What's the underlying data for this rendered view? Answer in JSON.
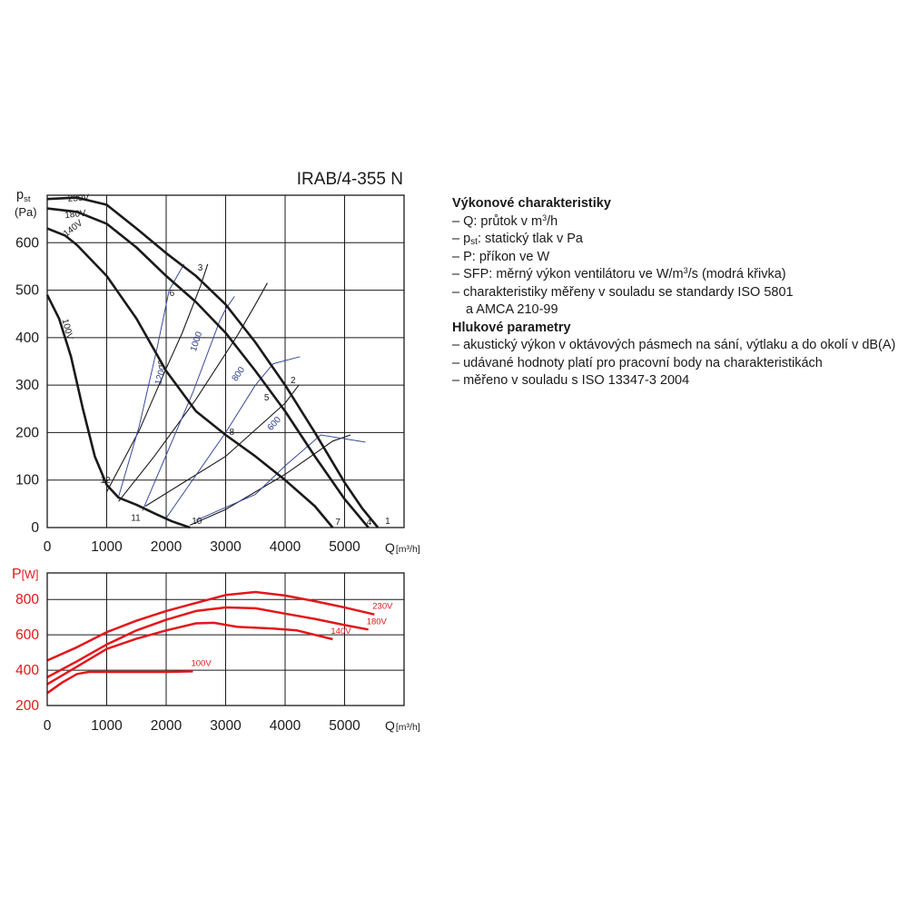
{
  "model_title": "IRAB/4-355 N",
  "legend": {
    "performance_heading": "Výkonové charakteristiky",
    "performance_items": [
      [
        {
          "t": "– Q: průtok v m"
        },
        {
          "t": "3",
          "sup": true
        },
        {
          "t": "/h"
        }
      ],
      [
        {
          "t": "– p"
        },
        {
          "t": "st",
          "sub": true
        },
        {
          "t": ": statický tlak v Pa"
        }
      ],
      [
        {
          "t": "– P: příkon ve W"
        }
      ],
      [
        {
          "t": "– SFP: měrný výkon ventilátoru ve W/m"
        },
        {
          "t": "3",
          "sup": true
        },
        {
          "t": "/s (modrá křivka)"
        }
      ],
      [
        {
          "t": "– charakteristiky měřeny v souladu se standardy ISO 5801"
        }
      ],
      [
        {
          "t": "a AMCA 210-99",
          "cont": true
        }
      ]
    ],
    "noise_heading": "Hlukové parametry",
    "noise_items": [
      [
        {
          "t": "– akustický výkon v oktávových pásmech na sání, výtlaku a do okolí v dB(A)"
        }
      ],
      [
        {
          "t": "– udávané hodnoty platí pro pracovní body na charakteristikách"
        }
      ],
      [
        {
          "t": "– měřeno v souladu s ISO 13347-3 2004"
        }
      ]
    ]
  },
  "chart_data": [
    {
      "type": "line",
      "title": "IRAB/4-355 N",
      "ylabel": "p",
      "ylabel_sub": "st",
      "ylabel_unit": "(Pa)",
      "xlabel": "Q",
      "xlabel_unit": "[m³/h]",
      "xlim": [
        0,
        6000
      ],
      "ylim": [
        0,
        700
      ],
      "xticks": [
        0,
        1000,
        2000,
        3000,
        4000,
        5000
      ],
      "yticks": [
        0,
        100,
        200,
        300,
        400,
        500,
        600
      ],
      "grid": true,
      "series": [
        {
          "name": "230V",
          "color": "#1a1a1a",
          "points": [
            [
              0,
              692
            ],
            [
              500,
              695
            ],
            [
              1000,
              680
            ],
            [
              1500,
              630
            ],
            [
              2000,
              578
            ],
            [
              2500,
              530
            ],
            [
              3000,
              470
            ],
            [
              3500,
              390
            ],
            [
              4000,
              300
            ],
            [
              4500,
              200
            ],
            [
              5000,
              95
            ],
            [
              5300,
              40
            ],
            [
              5560,
              0
            ]
          ]
        },
        {
          "name": "180V",
          "color": "#1a1a1a",
          "points": [
            [
              0,
              672
            ],
            [
              500,
              665
            ],
            [
              1000,
              640
            ],
            [
              1500,
              590
            ],
            [
              2000,
              530
            ],
            [
              2500,
              475
            ],
            [
              3000,
              410
            ],
            [
              3500,
              330
            ],
            [
              4000,
              245
            ],
            [
              4500,
              150
            ],
            [
              5000,
              60
            ],
            [
              5400,
              0
            ]
          ]
        },
        {
          "name": "140V",
          "color": "#1a1a1a",
          "points": [
            [
              0,
              630
            ],
            [
              300,
              615
            ],
            [
              500,
              595
            ],
            [
              1000,
              530
            ],
            [
              1500,
              440
            ],
            [
              2000,
              330
            ],
            [
              2500,
              245
            ],
            [
              3000,
              195
            ],
            [
              3500,
              150
            ],
            [
              4000,
              100
            ],
            [
              4500,
              45
            ],
            [
              4800,
              0
            ]
          ]
        },
        {
          "name": "100V",
          "color": "#1a1a1a",
          "points": [
            [
              0,
              490
            ],
            [
              200,
              440
            ],
            [
              400,
              360
            ],
            [
              600,
              250
            ],
            [
              800,
              150
            ],
            [
              1000,
              90
            ],
            [
              1200,
              63
            ],
            [
              1500,
              48
            ],
            [
              1800,
              30
            ],
            [
              2100,
              13
            ],
            [
              2400,
              0
            ]
          ]
        }
      ],
      "system_curves": [
        {
          "points": [
            [
              1000,
              75
            ],
            [
              1550,
              205
            ],
            [
              2000,
              335
            ],
            [
              2270,
              410
            ],
            [
              2580,
              510
            ],
            [
              2700,
              555
            ]
          ]
        },
        {
          "points": [
            [
              1200,
              55
            ],
            [
              1800,
              150
            ],
            [
              2500,
              270
            ],
            [
              3200,
              405
            ],
            [
              3500,
              470
            ],
            [
              3700,
              515
            ]
          ]
        },
        {
          "points": [
            [
              1650,
              45
            ],
            [
              3000,
              150
            ],
            [
              4000,
              262
            ],
            [
              4230,
              300
            ]
          ]
        },
        {
          "points": [
            [
              2400,
              5
            ],
            [
              3000,
              38
            ],
            [
              4000,
              112
            ],
            [
              4800,
              182
            ],
            [
              5100,
              195
            ]
          ]
        }
      ],
      "sfp_curves": [
        {
          "label": "1200",
          "points": [
            [
              1200,
              65
            ],
            [
              1550,
              215
            ],
            [
              1850,
              380
            ],
            [
              2050,
              500
            ],
            [
              2300,
              555
            ]
          ]
        },
        {
          "label": "1000",
          "points": [
            [
              1600,
              35
            ],
            [
              2450,
              285
            ],
            [
              2900,
              435
            ],
            [
              3000,
              460
            ],
            [
              3150,
              487
            ]
          ]
        },
        {
          "label": "800",
          "points": [
            [
              2000,
              20
            ],
            [
              3000,
              200
            ],
            [
              3500,
              300
            ],
            [
              3800,
              345
            ],
            [
              4250,
              360
            ]
          ]
        },
        {
          "label": "600",
          "points": [
            [
              2500,
              15
            ],
            [
              3500,
              70
            ],
            [
              4000,
              130
            ],
            [
              4600,
              195
            ],
            [
              5350,
              180
            ]
          ]
        }
      ],
      "operating_points": [
        {
          "label": "1",
          "x": 5560,
          "y": 0
        },
        {
          "label": "2",
          "x": 4000,
          "y": 300
        },
        {
          "label": "3",
          "x": 2500,
          "y": 530
        },
        {
          "label": "4",
          "x": 5400,
          "y": 0
        },
        {
          "label": "5",
          "x": 3860,
          "y": 275
        },
        {
          "label": "6",
          "x": 2270,
          "y": 495
        },
        {
          "label": "7",
          "x": 4800,
          "y": 0
        },
        {
          "label": "8",
          "x": 3000,
          "y": 195
        },
        {
          "label": "9",
          "x": 1950,
          "y": 330
        },
        {
          "label": "10",
          "x": 2400,
          "y": 0
        },
        {
          "label": "11",
          "x": 1500,
          "y": 45
        },
        {
          "label": "12",
          "x": 1000,
          "y": 82
        }
      ]
    },
    {
      "type": "line",
      "ylabel": "P",
      "ylabel_unit": "[W]",
      "xlabel": "Q",
      "xlabel_unit": "[m³/h]",
      "xlim": [
        0,
        6000
      ],
      "ylim": [
        200,
        950
      ],
      "xticks": [
        0,
        1000,
        2000,
        3000,
        4000,
        5000
      ],
      "yticks": [
        200,
        400,
        600,
        800
      ],
      "grid": true,
      "series": [
        {
          "name": "230V",
          "color": "#e3161b",
          "points": [
            [
              0,
              455
            ],
            [
              500,
              530
            ],
            [
              1000,
              615
            ],
            [
              1500,
              680
            ],
            [
              2000,
              735
            ],
            [
              2500,
              780
            ],
            [
              3000,
              825
            ],
            [
              3500,
              842
            ],
            [
              4000,
              822
            ],
            [
              4500,
              790
            ],
            [
              5000,
              755
            ],
            [
              5500,
              715
            ]
          ]
        },
        {
          "name": "180V",
          "color": "#e3161b",
          "points": [
            [
              0,
              360
            ],
            [
              500,
              450
            ],
            [
              1000,
              545
            ],
            [
              1500,
              625
            ],
            [
              2000,
              685
            ],
            [
              2500,
              735
            ],
            [
              3000,
              755
            ],
            [
              3500,
              750
            ],
            [
              4000,
              720
            ],
            [
              4500,
              690
            ],
            [
              5000,
              655
            ],
            [
              5400,
              630
            ]
          ]
        },
        {
          "name": "140V",
          "color": "#e3161b",
          "points": [
            [
              0,
              320
            ],
            [
              500,
              420
            ],
            [
              1000,
              520
            ],
            [
              1500,
              578
            ],
            [
              2000,
              625
            ],
            [
              2500,
              665
            ],
            [
              2800,
              668
            ],
            [
              3200,
              645
            ],
            [
              3800,
              635
            ],
            [
              4200,
              625
            ],
            [
              4800,
              575
            ]
          ]
        },
        {
          "name": "100V",
          "color": "#e3161b",
          "points": [
            [
              0,
              270
            ],
            [
              250,
              330
            ],
            [
              500,
              378
            ],
            [
              700,
              390
            ],
            [
              1000,
              390
            ],
            [
              1500,
              390
            ],
            [
              2000,
              390
            ],
            [
              2450,
              393
            ]
          ]
        }
      ]
    }
  ]
}
